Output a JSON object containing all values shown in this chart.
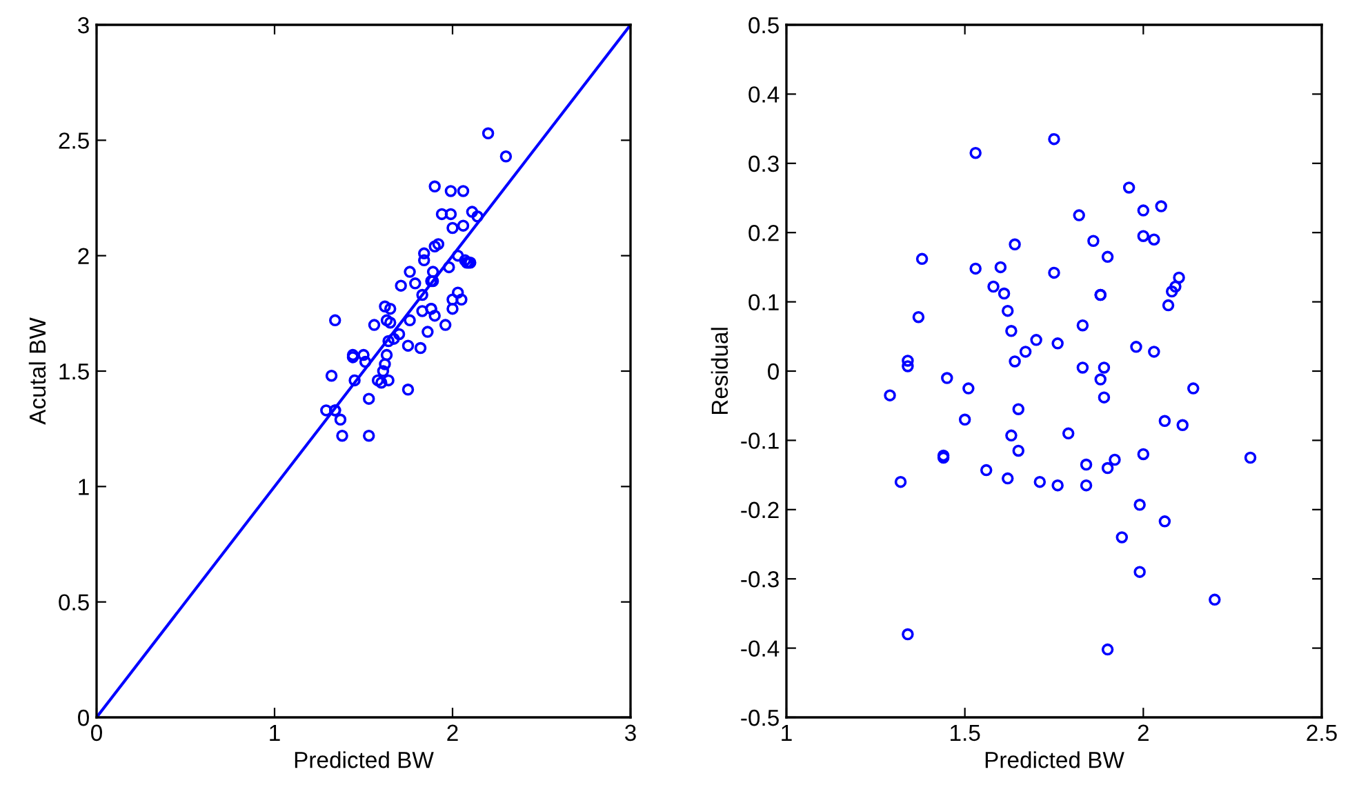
{
  "chart_data": [
    {
      "type": "scatter",
      "xlabel": "Predicted BW",
      "ylabel": "Acutal BW",
      "xlim": [
        0,
        3
      ],
      "ylim": [
        0,
        3
      ],
      "xticks": [
        0,
        1,
        2,
        3
      ],
      "yticks": [
        0,
        0.5,
        1,
        1.5,
        2,
        2.5,
        3
      ],
      "grid": false,
      "marker": "circle",
      "series": [
        {
          "color": "#0000ff",
          "x": [
            1.29,
            1.32,
            1.34,
            1.34,
            1.34,
            1.37,
            1.38,
            1.44,
            1.44,
            1.45,
            1.5,
            1.51,
            1.53,
            1.53,
            1.56,
            1.58,
            1.6,
            1.61,
            1.62,
            1.62,
            1.63,
            1.63,
            1.64,
            1.64,
            1.65,
            1.65,
            1.67,
            1.7,
            1.71,
            1.75,
            1.75,
            1.76,
            1.76,
            1.79,
            1.82,
            1.83,
            1.83,
            1.84,
            1.84,
            1.86,
            1.88,
            1.88,
            1.88,
            1.89,
            1.89,
            1.9,
            1.9,
            1.9,
            1.92,
            1.94,
            1.96,
            1.98,
            1.99,
            1.99,
            2.0,
            2.0,
            2.0,
            2.03,
            2.03,
            2.05,
            2.06,
            2.06,
            2.07,
            2.08,
            2.09,
            2.1,
            2.11,
            2.14,
            2.2,
            2.3
          ],
          "values": [
            1.33,
            1.48,
            1.33,
            1.33,
            1.72,
            1.29,
            1.22,
            1.56,
            1.57,
            1.46,
            1.57,
            1.54,
            1.22,
            1.38,
            1.7,
            1.46,
            1.45,
            1.5,
            1.53,
            1.78,
            1.72,
            1.57,
            1.46,
            1.63,
            1.71,
            1.77,
            1.64,
            1.66,
            1.87,
            1.42,
            1.61,
            1.72,
            1.93,
            1.88,
            1.6,
            1.76,
            1.83,
            1.98,
            2.01,
            1.67,
            1.77,
            1.77,
            1.89,
            1.89,
            1.93,
            1.74,
            2.04,
            2.3,
            2.05,
            2.18,
            1.7,
            1.95,
            2.18,
            2.28,
            1.77,
            1.81,
            2.12,
            1.84,
            2.0,
            1.81,
            2.13,
            2.28,
            1.98,
            1.97,
            1.97,
            1.97,
            2.19,
            2.17,
            2.53,
            2.43
          ]
        },
        {
          "type": "line",
          "color": "#0000ff",
          "marker": "none",
          "line_style": "solid",
          "x": [
            0,
            3
          ],
          "values": [
            0,
            3
          ]
        }
      ]
    },
    {
      "type": "scatter",
      "xlabel": "Predicted BW",
      "ylabel": "Residual",
      "xlim": [
        1,
        2.5
      ],
      "ylim": [
        -0.5,
        0.5
      ],
      "xticks": [
        1,
        1.5,
        2,
        2.5
      ],
      "yticks": [
        -0.5,
        -0.4,
        -0.3,
        -0.2,
        -0.1,
        0,
        0.1,
        0.2,
        0.3,
        0.4,
        0.5
      ],
      "grid": false,
      "marker": "circle",
      "series": [
        {
          "color": "#0000ff",
          "x": [
            1.29,
            1.32,
            1.34,
            1.34,
            1.34,
            1.37,
            1.38,
            1.44,
            1.44,
            1.45,
            1.5,
            1.51,
            1.53,
            1.53,
            1.56,
            1.58,
            1.6,
            1.61,
            1.62,
            1.62,
            1.63,
            1.63,
            1.64,
            1.64,
            1.65,
            1.65,
            1.67,
            1.7,
            1.71,
            1.75,
            1.75,
            1.76,
            1.76,
            1.79,
            1.82,
            1.83,
            1.83,
            1.84,
            1.84,
            1.86,
            1.88,
            1.88,
            1.88,
            1.89,
            1.89,
            1.9,
            1.9,
            1.9,
            1.92,
            1.94,
            1.96,
            1.98,
            1.99,
            1.99,
            2.0,
            2.0,
            2.0,
            2.03,
            2.03,
            2.05,
            2.06,
            2.06,
            2.07,
            2.08,
            2.09,
            2.1,
            2.11,
            2.14,
            2.2,
            2.3
          ],
          "values": [
            -0.035,
            -0.16,
            0.015,
            0.007,
            -0.38,
            0.078,
            0.162,
            -0.122,
            -0.125,
            -0.01,
            -0.07,
            -0.025,
            0.315,
            0.148,
            -0.143,
            0.122,
            0.15,
            0.112,
            0.087,
            -0.155,
            -0.093,
            0.058,
            0.183,
            0.014,
            -0.055,
            -0.115,
            0.028,
            0.045,
            -0.16,
            0.335,
            0.142,
            0.04,
            -0.165,
            -0.09,
            0.225,
            0.066,
            0.005,
            -0.135,
            -0.165,
            0.188,
            0.11,
            0.11,
            -0.012,
            0.005,
            -0.038,
            0.165,
            -0.14,
            -0.402,
            -0.128,
            -0.24,
            0.265,
            0.035,
            -0.193,
            -0.29,
            0.232,
            0.195,
            -0.12,
            0.19,
            0.028,
            0.238,
            -0.072,
            -0.217,
            0.095,
            0.115,
            0.122,
            0.135,
            -0.078,
            -0.025,
            -0.33,
            -0.125
          ]
        }
      ]
    }
  ]
}
